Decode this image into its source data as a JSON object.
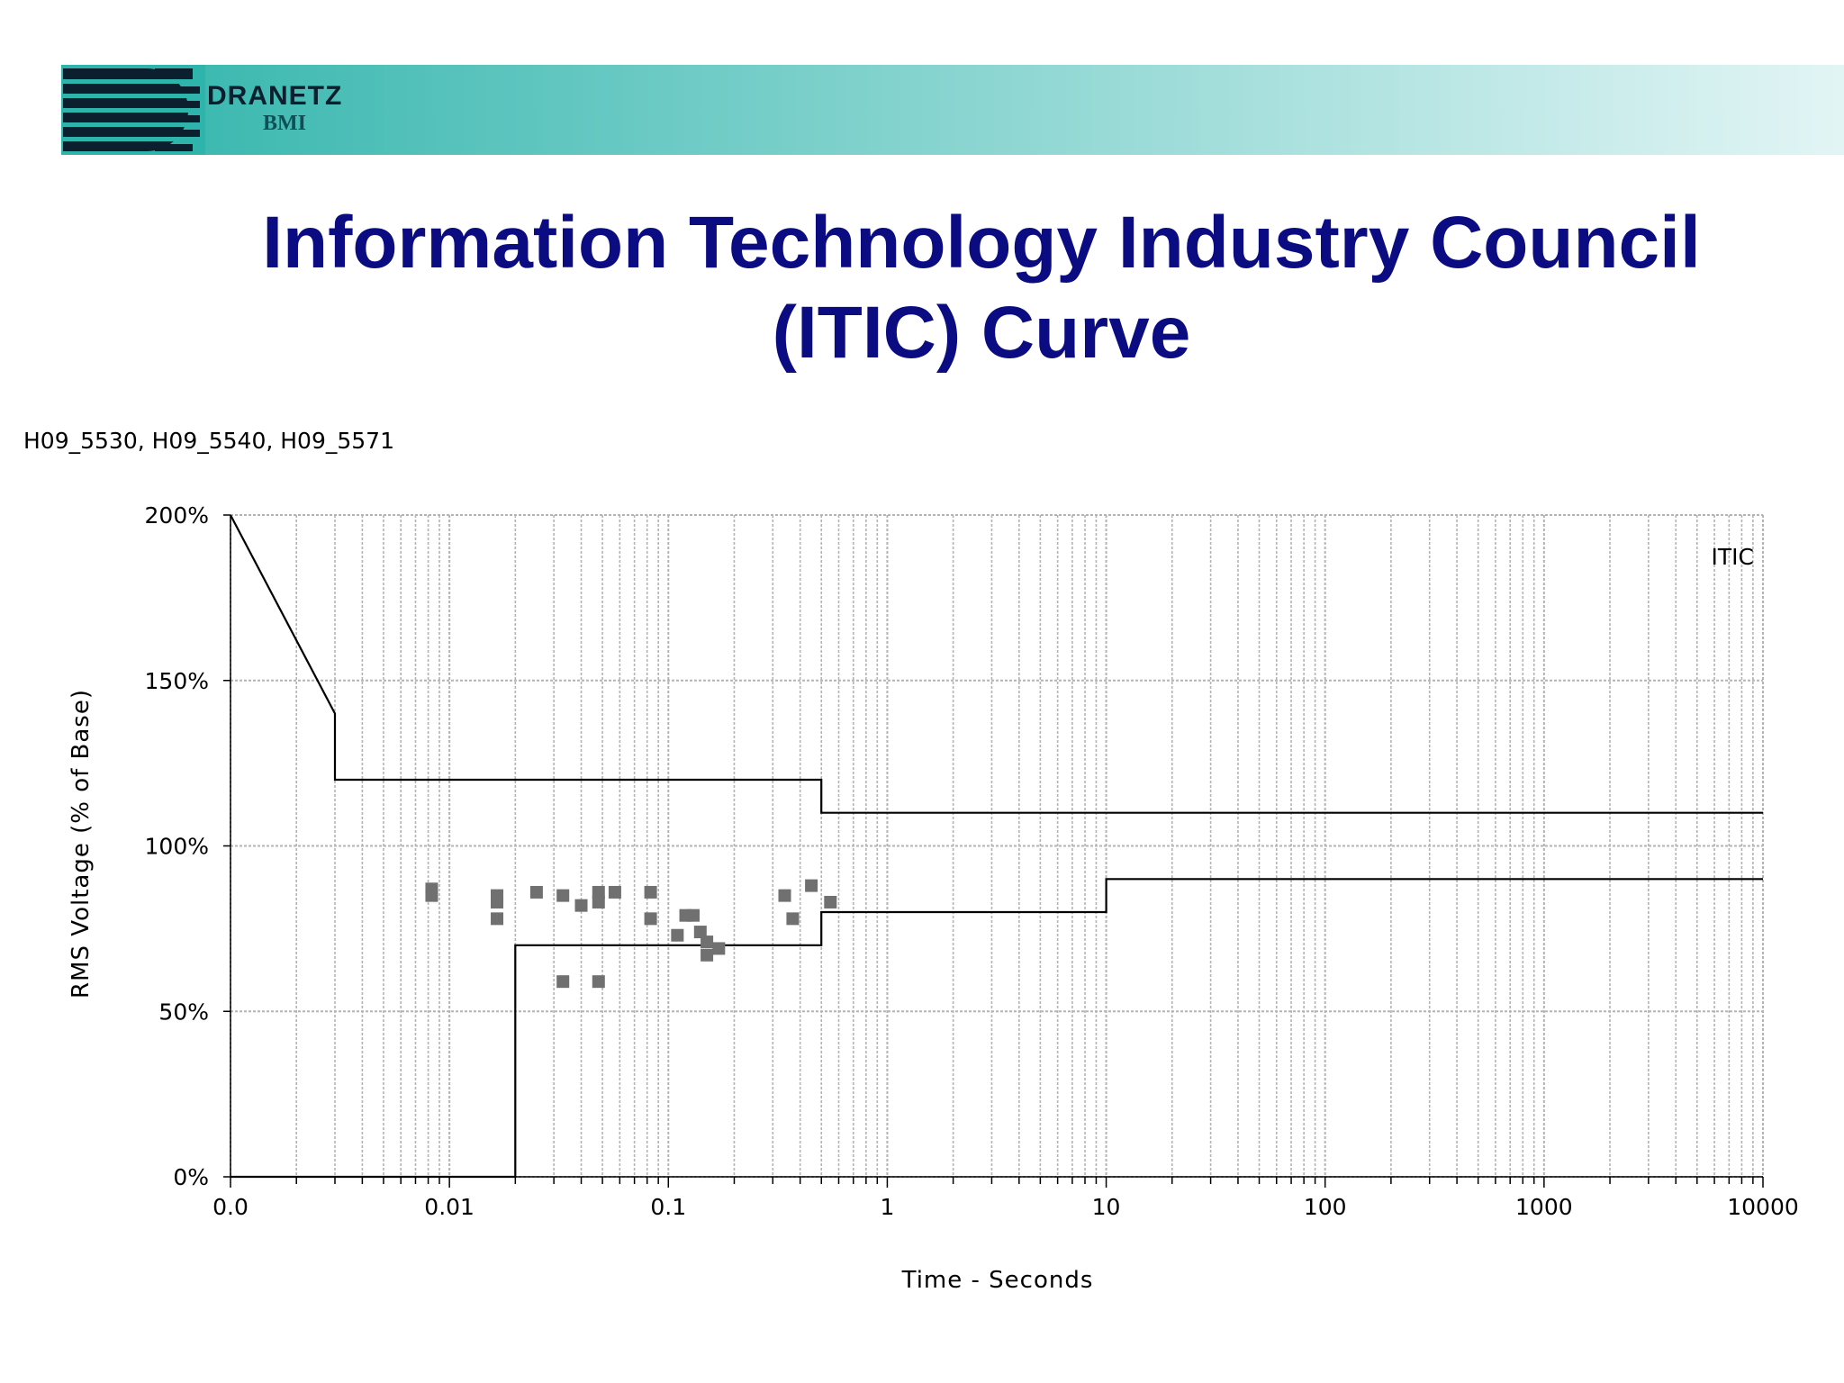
{
  "header": {
    "brand_name": "DRANETZ",
    "brand_sub": "BMI",
    "banner_colors": [
      "#2fb4ab",
      "#e2f5f5"
    ]
  },
  "slide": {
    "title": "Information Technology Industry Council\n(ITIC) Curve"
  },
  "chart_data": {
    "type": "scatter",
    "dataset_label": "H09_5530, H09_5540, H09_5571",
    "xlabel": "Time - Seconds",
    "ylabel": "RMS Voltage (% of Base)",
    "x_scale": "log",
    "xlim": [
      0.001,
      10000
    ],
    "ylim": [
      0,
      200
    ],
    "x_tick_labels": [
      {
        "value": 0.001,
        "label": "0.0"
      },
      {
        "value": 0.01,
        "label": "0.01"
      },
      {
        "value": 0.1,
        "label": "0.1"
      },
      {
        "value": 1,
        "label": "1"
      },
      {
        "value": 10,
        "label": "10"
      },
      {
        "value": 100,
        "label": "100"
      },
      {
        "value": 1000,
        "label": "1000"
      },
      {
        "value": 10000,
        "label": "10000"
      }
    ],
    "y_tick_labels": [
      {
        "value": 0,
        "label": "0%"
      },
      {
        "value": 50,
        "label": "50%"
      },
      {
        "value": 100,
        "label": "100%"
      },
      {
        "value": 150,
        "label": "150%"
      },
      {
        "value": 200,
        "label": "200%"
      }
    ],
    "grid": true,
    "legend": {
      "text": "ITIC",
      "placement": "top-right"
    },
    "limit_curves": [
      {
        "name": "upper",
        "points": [
          [
            0.001,
            200
          ],
          [
            0.003,
            140
          ],
          [
            0.003,
            120
          ],
          [
            0.5,
            120
          ],
          [
            0.5,
            110
          ],
          [
            10000,
            110
          ]
        ]
      },
      {
        "name": "lower",
        "points": [
          [
            0.001,
            0
          ],
          [
            0.02,
            0
          ],
          [
            0.02,
            70
          ],
          [
            0.5,
            70
          ],
          [
            0.5,
            80
          ],
          [
            10,
            80
          ],
          [
            10,
            90
          ],
          [
            10000,
            90
          ]
        ]
      }
    ],
    "points": [
      [
        0.0083,
        85
      ],
      [
        0.0083,
        87
      ],
      [
        0.0165,
        85
      ],
      [
        0.0165,
        83
      ],
      [
        0.0165,
        78
      ],
      [
        0.025,
        86
      ],
      [
        0.033,
        85
      ],
      [
        0.033,
        59
      ],
      [
        0.04,
        82
      ],
      [
        0.048,
        86
      ],
      [
        0.048,
        83
      ],
      [
        0.048,
        59
      ],
      [
        0.057,
        86
      ],
      [
        0.083,
        86
      ],
      [
        0.083,
        78
      ],
      [
        0.11,
        73
      ],
      [
        0.12,
        79
      ],
      [
        0.13,
        79
      ],
      [
        0.14,
        74
      ],
      [
        0.15,
        71
      ],
      [
        0.15,
        67
      ],
      [
        0.17,
        69
      ],
      [
        0.34,
        85
      ],
      [
        0.37,
        78
      ],
      [
        0.45,
        88
      ],
      [
        0.55,
        83
      ]
    ],
    "colors": {
      "curve": "#000000",
      "points": "#707070",
      "grid": "#b4b4b4"
    }
  }
}
